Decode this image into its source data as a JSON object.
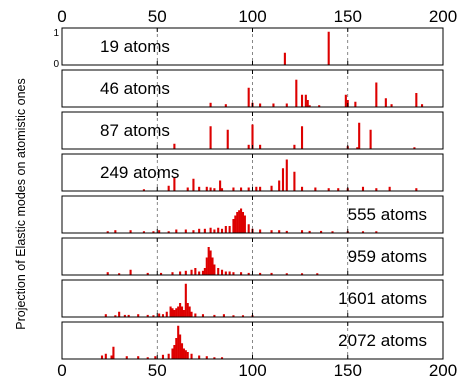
{
  "chart_data": {
    "type": "bar",
    "ylabel": "Projection of Elastic modes on atomistic ones",
    "xlabel": "",
    "xlim": [
      0,
      200
    ],
    "ylim": [
      0,
      1
    ],
    "x_ticks": [
      0,
      50,
      100,
      150,
      200
    ],
    "y_tick_labels": [
      "0",
      "1"
    ],
    "grid": "vertical dashed at x ticks",
    "bar_color": "#dd0000",
    "panels": [
      {
        "name": "19 atoms",
        "label_position": "left",
        "x": [
          117,
          140
        ],
        "values": [
          0.35,
          0.95
        ]
      },
      {
        "name": "46 atoms",
        "label_position": "left",
        "x": [
          78,
          86,
          98,
          100,
          104,
          111,
          118,
          123,
          126,
          128,
          129,
          130,
          135,
          149,
          150,
          154,
          165,
          170,
          173,
          186,
          189
        ],
        "values": [
          0.12,
          0.08,
          0.55,
          0.12,
          0.1,
          0.1,
          0.1,
          0.78,
          0.35,
          0.35,
          0.2,
          0.05,
          0.05,
          0.35,
          0.2,
          0.15,
          0.7,
          0.25,
          0.08,
          0.4,
          0.08
        ]
      },
      {
        "name": "87 atoms",
        "label_position": "left",
        "x": [
          59,
          78,
          87,
          98,
          100,
          104,
          122,
          126,
          150,
          155,
          156,
          162,
          185
        ],
        "values": [
          0.15,
          0.65,
          0.55,
          0.12,
          0.7,
          0.12,
          0.12,
          0.65,
          0.08,
          0.05,
          0.75,
          0.55,
          0.05
        ]
      },
      {
        "name": "249 atoms",
        "label_position": "left",
        "x": [
          43,
          56,
          59,
          66,
          69,
          72,
          76,
          78,
          80,
          83,
          84,
          90,
          94,
          98,
          102,
          104,
          110,
          114,
          116,
          118,
          122,
          126,
          133,
          140,
          145,
          150,
          158,
          165,
          172,
          186
        ],
        "values": [
          0.05,
          0.15,
          0.4,
          0.1,
          0.35,
          0.12,
          0.12,
          0.1,
          0.08,
          0.3,
          0.08,
          0.1,
          0.1,
          0.1,
          0.12,
          0.12,
          0.15,
          0.3,
          0.65,
          0.9,
          0.55,
          0.12,
          0.1,
          0.08,
          0.08,
          0.08,
          0.12,
          0.08,
          0.12,
          0.08
        ]
      },
      {
        "name": "555 atoms",
        "label_position": "right",
        "x": [
          24,
          28,
          36,
          43,
          48,
          51,
          56,
          60,
          65,
          69,
          72,
          75,
          78,
          80,
          82,
          84,
          86,
          88,
          90,
          91,
          92,
          93,
          94,
          95,
          96,
          98,
          100,
          104,
          110,
          114,
          118,
          126,
          130,
          136,
          142,
          150,
          158,
          165
        ],
        "values": [
          0.05,
          0.08,
          0.08,
          0.05,
          0.05,
          0.08,
          0.05,
          0.1,
          0.1,
          0.08,
          0.12,
          0.12,
          0.15,
          0.1,
          0.15,
          0.12,
          0.2,
          0.2,
          0.4,
          0.5,
          0.6,
          0.65,
          0.7,
          0.6,
          0.5,
          0.25,
          0.12,
          0.1,
          0.08,
          0.08,
          0.06,
          0.08,
          0.06,
          0.06,
          0.05,
          0.05,
          0.05,
          0.05
        ]
      },
      {
        "name": "959 atoms",
        "label_position": "right",
        "x": [
          24,
          30,
          36,
          45,
          52,
          58,
          62,
          65,
          68,
          70,
          72,
          74,
          75,
          76,
          77,
          78,
          79,
          80,
          82,
          84,
          86,
          88,
          90,
          94,
          98,
          104,
          110,
          118,
          126,
          134
        ],
        "values": [
          0.08,
          0.05,
          0.15,
          0.06,
          0.06,
          0.08,
          0.1,
          0.12,
          0.15,
          0.2,
          0.1,
          0.12,
          0.2,
          0.5,
          0.8,
          0.7,
          0.5,
          0.3,
          0.2,
          0.15,
          0.1,
          0.1,
          0.08,
          0.08,
          0.06,
          0.06,
          0.06,
          0.05,
          0.05,
          0.05
        ]
      },
      {
        "name": "1601 atoms",
        "label_position": "right",
        "x": [
          23,
          28,
          30,
          33,
          35,
          40,
          45,
          48,
          51,
          53,
          55,
          57,
          58,
          59,
          60,
          61,
          62,
          63,
          64,
          65,
          66,
          67,
          68,
          70,
          74,
          80,
          85,
          90,
          95,
          100
        ],
        "values": [
          0.08,
          0.05,
          0.15,
          0.06,
          0.06,
          0.08,
          0.06,
          0.05,
          0.1,
          0.08,
          0.15,
          0.3,
          0.25,
          0.2,
          0.25,
          0.3,
          0.4,
          0.3,
          0.2,
          0.95,
          0.4,
          0.3,
          0.15,
          0.1,
          0.08,
          0.06,
          0.08,
          0.05,
          0.05,
          0.05
        ]
      },
      {
        "name": "2072 atoms",
        "label_position": "right",
        "x": [
          21,
          23,
          26,
          27,
          34,
          40,
          45,
          49,
          53,
          56,
          58,
          59,
          60,
          61,
          62,
          63,
          64,
          65,
          66,
          68,
          72,
          76,
          80,
          84
        ],
        "values": [
          0.1,
          0.15,
          0.1,
          0.35,
          0.08,
          0.08,
          0.05,
          0.08,
          0.12,
          0.15,
          0.3,
          0.4,
          0.6,
          0.95,
          0.7,
          0.45,
          0.3,
          0.25,
          0.2,
          0.15,
          0.1,
          0.08,
          0.05,
          0.05
        ]
      }
    ]
  }
}
